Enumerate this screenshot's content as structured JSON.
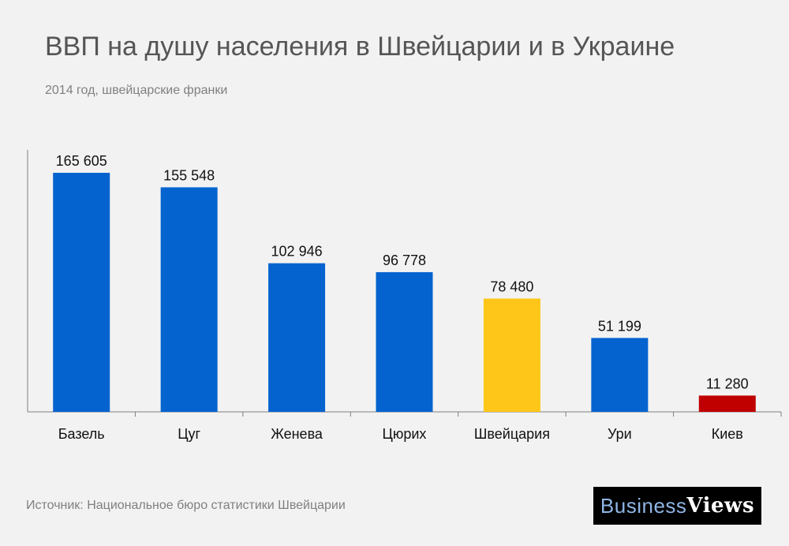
{
  "header": {
    "title": "ВВП на душу населения в Швейцарии и в Украине",
    "subtitle": "2014 год, швейцарские франки"
  },
  "chart_data": {
    "type": "bar",
    "categories": [
      "Базель",
      "Цуг",
      "Женева",
      "Цюрих",
      "Швейцария",
      "Ури",
      "Киев"
    ],
    "values": [
      165605,
      155548,
      102946,
      96778,
      78480,
      51199,
      11280
    ],
    "data_labels": [
      "165 605",
      "155 548",
      "102 946",
      "96 778",
      "78 480",
      "51 199",
      "11 280"
    ],
    "bar_colors": [
      "#0563cf",
      "#0563cf",
      "#0563cf",
      "#0563cf",
      "#ffc61a",
      "#0563cf",
      "#c00000"
    ],
    "ylim": [
      0,
      170000
    ],
    "grid": false,
    "legend": "none"
  },
  "footer": {
    "source": "Источник: Национальное бюро статистики Швейцарии",
    "logo_part1": "Business",
    "logo_part2": "Views"
  },
  "colors": {
    "background": "#f2f2f2",
    "axis": "#808080"
  }
}
